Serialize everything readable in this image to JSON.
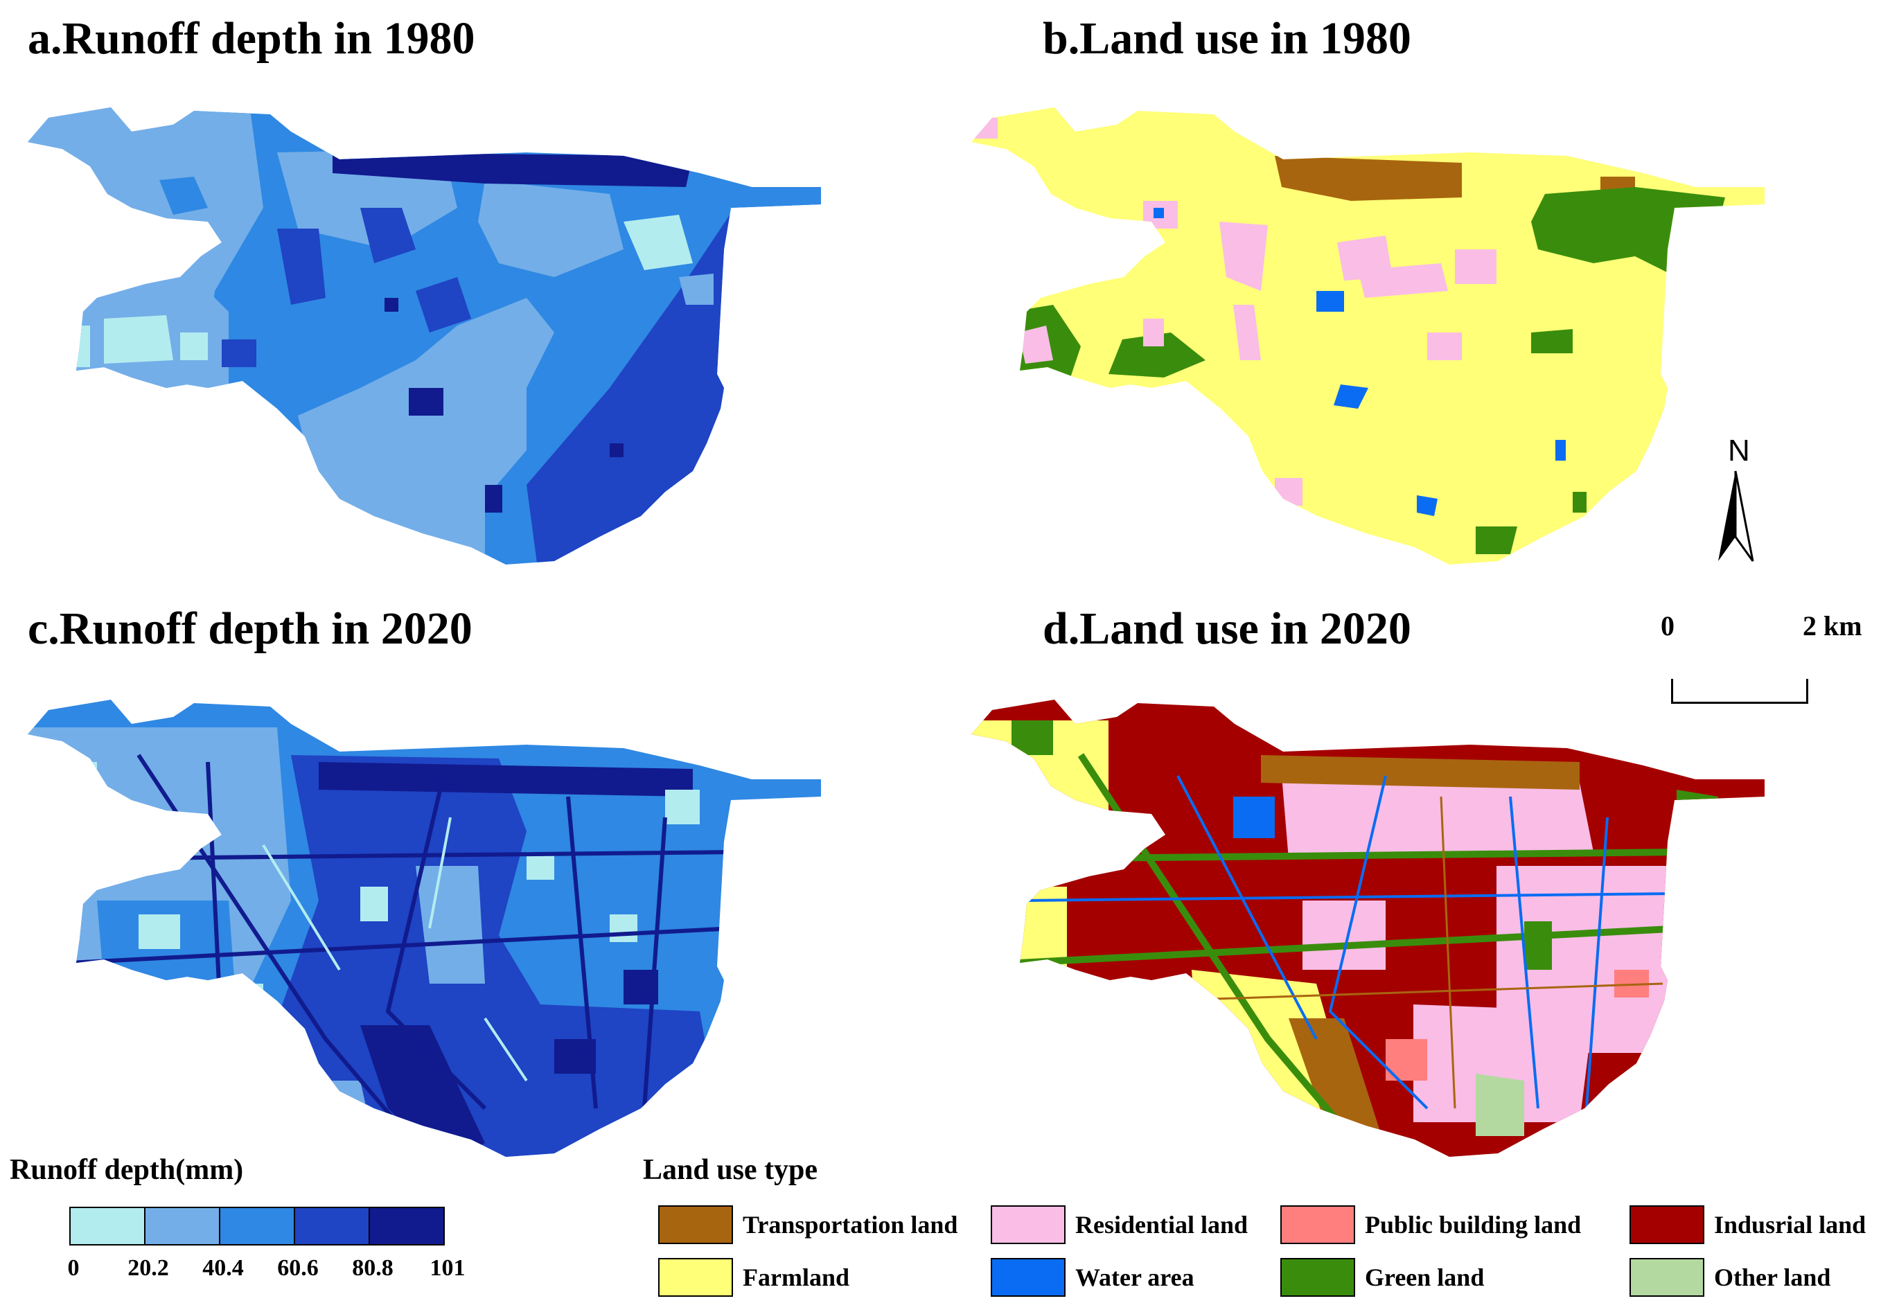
{
  "panels": {
    "a": {
      "title": "a.Runoff depth in 1980"
    },
    "b": {
      "title": "b.Land use in 1980"
    },
    "c": {
      "title": "c.Runoff depth in 2020"
    },
    "d": {
      "title": "d.Land use in 2020"
    }
  },
  "runoff_legend": {
    "title": "Runoff depth(mm)",
    "breaks": [
      "0",
      "20.2",
      "40.4",
      "60.6",
      "80.8",
      "101"
    ],
    "colors": [
      "#b3ecef",
      "#73aee8",
      "#2f88e3",
      "#1f44c4",
      "#111b8e"
    ]
  },
  "landuse_legend": {
    "title": "Land use type",
    "items": [
      {
        "label": "Transportation land",
        "color": "#a8650f"
      },
      {
        "label": "Residential land",
        "color": "#f9bde6"
      },
      {
        "label": "Public building land",
        "color": "#ff7e7e"
      },
      {
        "label": "Indusrial land",
        "color": "#a40000"
      },
      {
        "label": "Farmland",
        "color": "#ffff78"
      },
      {
        "label": "Water area",
        "color": "#0a6cf2"
      },
      {
        "label": "Green land",
        "color": "#3a8d0c"
      },
      {
        "label": "Other land",
        "color": "#b4d9a0"
      }
    ]
  },
  "north_arrow": {
    "label": "N"
  },
  "scale_bar": {
    "start": "0",
    "end": "2 km"
  }
}
